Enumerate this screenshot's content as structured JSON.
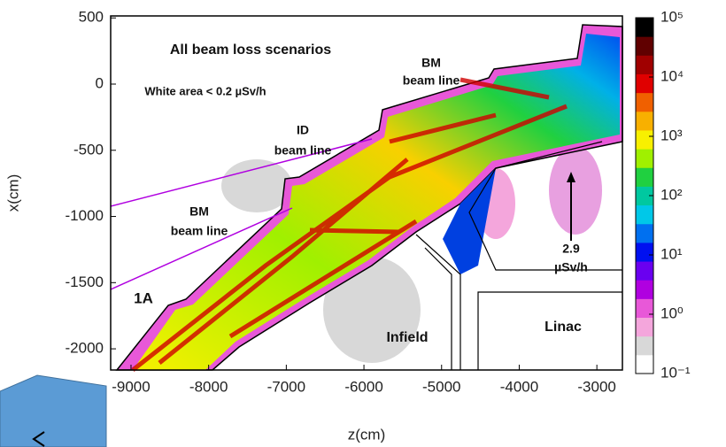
{
  "chart_data": {
    "type": "heatmap",
    "xlabel": "z(cm)",
    "ylabel": "x(cm)",
    "xlim": [
      -9262,
      -2671
    ],
    "xticks": [
      -9000,
      -8000,
      -7000,
      -6000,
      -5000,
      -4000,
      -3000
    ],
    "ylim": [
      -2160,
      515
    ],
    "yticks": [
      500,
      0,
      -500,
      -1000,
      -1500,
      -2000
    ],
    "colorbar": {
      "log": true,
      "lim": [
        0.1,
        100000
      ],
      "ticks": [
        {
          "value": 0.1,
          "label": "10⁻¹"
        },
        {
          "value": 1,
          "label": "10⁰"
        },
        {
          "value": 10,
          "label": "10¹"
        },
        {
          "value": 100,
          "label": "10²"
        },
        {
          "value": 1000,
          "label": "10³"
        },
        {
          "value": 10000,
          "label": "10⁴"
        },
        {
          "value": 100000,
          "label": "10⁵"
        }
      ],
      "colors": [
        "#ffffff",
        "#d8d8d8",
        "#f4a6dc",
        "#e858d8",
        "#b000e0",
        "#6a00f0",
        "#0010f0",
        "#0070f0",
        "#00c8e8",
        "#00c8a0",
        "#20d040",
        "#a0f000",
        "#f8f000",
        "#f8b000",
        "#f06000",
        "#e00000",
        "#a00000",
        "#600000",
        "#000000"
      ]
    },
    "annotations": [
      "All beam loss scenarios",
      "White area < 0.2 µSv/h",
      "BM",
      "beam line",
      "ID",
      "beam line",
      "BM",
      "beam line",
      "2.9",
      "µSv/h",
      "1A",
      "Infield",
      "Linac"
    ]
  }
}
